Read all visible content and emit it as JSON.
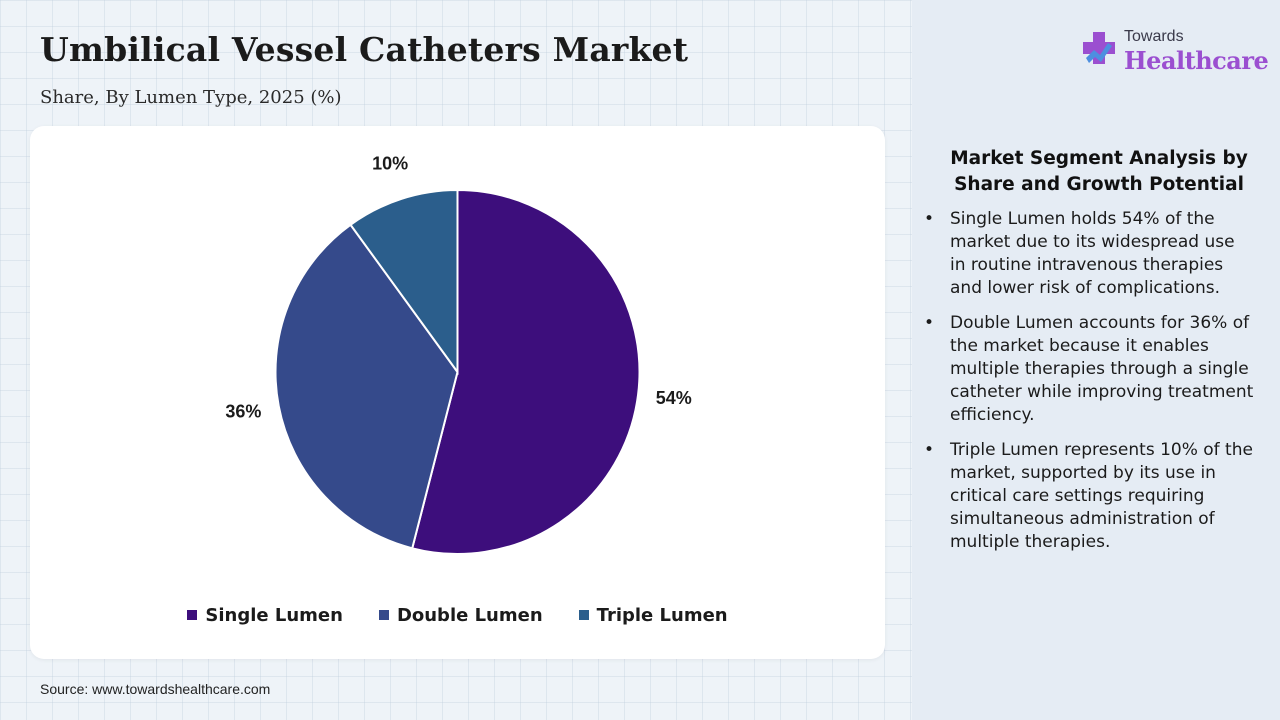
{
  "title": "Umbilical Vessel Catheters Market",
  "subtitle": "Share, By Lumen Type, 2025 (%)",
  "source": "Source: www.towardshealthcare.com",
  "logo": {
    "small_text": "Towards",
    "big_text": "Healthcare",
    "icon": "medical-cross-icon"
  },
  "panel": {
    "heading": "Market Segment Analysis by Share and Growth Potential",
    "bullets": [
      "Single Lumen holds 54% of the market due to its widespread use in routine intravenous therapies and lower risk of complications.",
      "Double Lumen accounts for 36% of the market because it enables multiple therapies through a single catheter while improving treatment efficiency.",
      "Triple Lumen represents 10% of the market, supported by its use in critical care settings requiring simultaneous administration of multiple therapies."
    ]
  },
  "colors": {
    "single": "#3d0e7c",
    "double": "#354a8b",
    "triple": "#2b5e8c",
    "logo_accent": "#9b4fd0"
  },
  "chart_data": {
    "type": "pie",
    "categories": [
      "Single Lumen",
      "Double Lumen",
      "Triple Lumen"
    ],
    "values": [
      54,
      36,
      10
    ],
    "labels": [
      "54%",
      "36%",
      "10%"
    ],
    "colors": [
      "#3d0e7c",
      "#354a8b",
      "#2b5e8c"
    ],
    "title": "Umbilical Vessel Catheters Market",
    "subtitle": "Share, By Lumen Type, 2025 (%)",
    "legend_position": "bottom",
    "start_angle": "12 o'clock",
    "direction": "clockwise"
  }
}
